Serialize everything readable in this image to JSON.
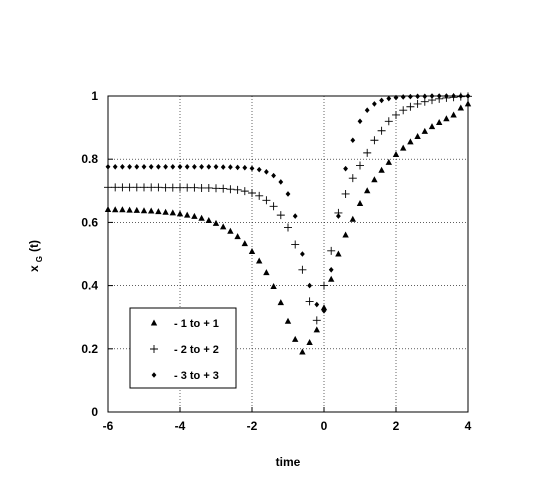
{
  "chart_data": {
    "type": "scatter",
    "title": "",
    "xlabel": "time",
    "ylabel": "x",
    "ylabel_sub": "G",
    "ylabel_suffix": "(t)",
    "xlim": [
      -6,
      4
    ],
    "ylim": [
      0,
      1
    ],
    "xticks": [
      "-6",
      "-4",
      "-2",
      "0",
      "2",
      "4"
    ],
    "yticks": [
      "0",
      "0.2",
      "0.4",
      "0.6",
      "0.8",
      "1"
    ],
    "grid": true,
    "legend_position": "bottom-left",
    "series": [
      {
        "name": "- 1  to + 1",
        "marker": "triangle",
        "points": [
          [
            -6.0,
            0.641
          ],
          [
            -5.8,
            0.64
          ],
          [
            -5.6,
            0.64
          ],
          [
            -5.4,
            0.639
          ],
          [
            -5.2,
            0.638
          ],
          [
            -5.0,
            0.637
          ],
          [
            -4.8,
            0.636
          ],
          [
            -4.6,
            0.634
          ],
          [
            -4.4,
            0.632
          ],
          [
            -4.2,
            0.63
          ],
          [
            -4.0,
            0.627
          ],
          [
            -3.8,
            0.623
          ],
          [
            -3.6,
            0.619
          ],
          [
            -3.4,
            0.613
          ],
          [
            -3.2,
            0.606
          ],
          [
            -3.0,
            0.597
          ],
          [
            -2.8,
            0.586
          ],
          [
            -2.6,
            0.572
          ],
          [
            -2.4,
            0.555
          ],
          [
            -2.2,
            0.533
          ],
          [
            -2.0,
            0.508
          ],
          [
            -1.8,
            0.478
          ],
          [
            -1.6,
            0.441
          ],
          [
            -1.4,
            0.397
          ],
          [
            -1.2,
            0.346
          ],
          [
            -1.0,
            0.287
          ],
          [
            -0.8,
            0.23
          ],
          [
            -0.6,
            0.19
          ],
          [
            -0.4,
            0.22
          ],
          [
            -0.2,
            0.26
          ],
          [
            0.0,
            0.33
          ],
          [
            0.2,
            0.42
          ],
          [
            0.4,
            0.5
          ],
          [
            0.6,
            0.56
          ],
          [
            0.8,
            0.61
          ],
          [
            1.0,
            0.66
          ],
          [
            1.2,
            0.7
          ],
          [
            1.4,
            0.735
          ],
          [
            1.6,
            0.765
          ],
          [
            1.8,
            0.79
          ],
          [
            2.0,
            0.815
          ],
          [
            2.2,
            0.835
          ],
          [
            2.4,
            0.855
          ],
          [
            2.6,
            0.872
          ],
          [
            2.8,
            0.888
          ],
          [
            3.0,
            0.903
          ],
          [
            3.2,
            0.916
          ],
          [
            3.4,
            0.928
          ],
          [
            3.6,
            0.94
          ],
          [
            3.8,
            0.962
          ],
          [
            4.0,
            0.975
          ]
        ]
      },
      {
        "name": "- 2  to + 2",
        "marker": "plus",
        "points": [
          [
            -6.0,
            0.711
          ],
          [
            -5.8,
            0.711
          ],
          [
            -5.6,
            0.711
          ],
          [
            -5.4,
            0.711
          ],
          [
            -5.2,
            0.711
          ],
          [
            -5.0,
            0.711
          ],
          [
            -4.8,
            0.711
          ],
          [
            -4.6,
            0.711
          ],
          [
            -4.4,
            0.71
          ],
          [
            -4.2,
            0.71
          ],
          [
            -4.0,
            0.71
          ],
          [
            -3.8,
            0.71
          ],
          [
            -3.6,
            0.71
          ],
          [
            -3.4,
            0.709
          ],
          [
            -3.2,
            0.709
          ],
          [
            -3.0,
            0.708
          ],
          [
            -2.8,
            0.707
          ],
          [
            -2.6,
            0.705
          ],
          [
            -2.4,
            0.703
          ],
          [
            -2.2,
            0.699
          ],
          [
            -2.0,
            0.693
          ],
          [
            -1.8,
            0.684
          ],
          [
            -1.6,
            0.67
          ],
          [
            -1.4,
            0.651
          ],
          [
            -1.2,
            0.623
          ],
          [
            -1.0,
            0.584
          ],
          [
            -0.8,
            0.53
          ],
          [
            -0.6,
            0.45
          ],
          [
            -0.4,
            0.35
          ],
          [
            -0.2,
            0.29
          ],
          [
            0.0,
            0.4
          ],
          [
            0.2,
            0.51
          ],
          [
            0.4,
            0.63
          ],
          [
            0.6,
            0.69
          ],
          [
            0.8,
            0.74
          ],
          [
            1.0,
            0.78
          ],
          [
            1.2,
            0.82
          ],
          [
            1.4,
            0.86
          ],
          [
            1.6,
            0.89
          ],
          [
            1.8,
            0.92
          ],
          [
            2.0,
            0.94
          ],
          [
            2.2,
            0.955
          ],
          [
            2.4,
            0.966
          ],
          [
            2.6,
            0.975
          ],
          [
            2.8,
            0.982
          ],
          [
            3.0,
            0.987
          ],
          [
            3.2,
            0.991
          ],
          [
            3.4,
            0.994
          ],
          [
            3.6,
            0.996
          ],
          [
            3.8,
            0.998
          ],
          [
            4.0,
            0.999
          ]
        ]
      },
      {
        "name": "- 3  to + 3",
        "marker": "diamond",
        "points": [
          [
            -6.0,
            0.776
          ],
          [
            -5.8,
            0.776
          ],
          [
            -5.6,
            0.776
          ],
          [
            -5.4,
            0.776
          ],
          [
            -5.2,
            0.776
          ],
          [
            -5.0,
            0.776
          ],
          [
            -4.8,
            0.776
          ],
          [
            -4.6,
            0.776
          ],
          [
            -4.4,
            0.776
          ],
          [
            -4.2,
            0.776
          ],
          [
            -4.0,
            0.776
          ],
          [
            -3.8,
            0.776
          ],
          [
            -3.6,
            0.776
          ],
          [
            -3.4,
            0.776
          ],
          [
            -3.2,
            0.776
          ],
          [
            -3.0,
            0.776
          ],
          [
            -2.8,
            0.775
          ],
          [
            -2.6,
            0.775
          ],
          [
            -2.4,
            0.774
          ],
          [
            -2.2,
            0.773
          ],
          [
            -2.0,
            0.771
          ],
          [
            -1.8,
            0.767
          ],
          [
            -1.6,
            0.76
          ],
          [
            -1.4,
            0.748
          ],
          [
            -1.2,
            0.728
          ],
          [
            -1.0,
            0.69
          ],
          [
            -0.8,
            0.62
          ],
          [
            -0.6,
            0.5
          ],
          [
            -0.4,
            0.4
          ],
          [
            -0.2,
            0.34
          ],
          [
            0.0,
            0.32
          ],
          [
            0.2,
            0.45
          ],
          [
            0.4,
            0.62
          ],
          [
            0.6,
            0.77
          ],
          [
            0.8,
            0.86
          ],
          [
            1.0,
            0.92
          ],
          [
            1.2,
            0.955
          ],
          [
            1.4,
            0.975
          ],
          [
            1.6,
            0.986
          ],
          [
            1.8,
            0.992
          ],
          [
            2.0,
            0.995
          ],
          [
            2.2,
            0.997
          ],
          [
            2.4,
            0.998
          ],
          [
            2.6,
            0.999
          ],
          [
            2.8,
            0.999
          ],
          [
            3.0,
            1.0
          ],
          [
            3.2,
            1.0
          ],
          [
            3.4,
            1.0
          ],
          [
            3.6,
            1.0
          ],
          [
            3.8,
            1.0
          ],
          [
            4.0,
            1.0
          ]
        ]
      }
    ]
  }
}
